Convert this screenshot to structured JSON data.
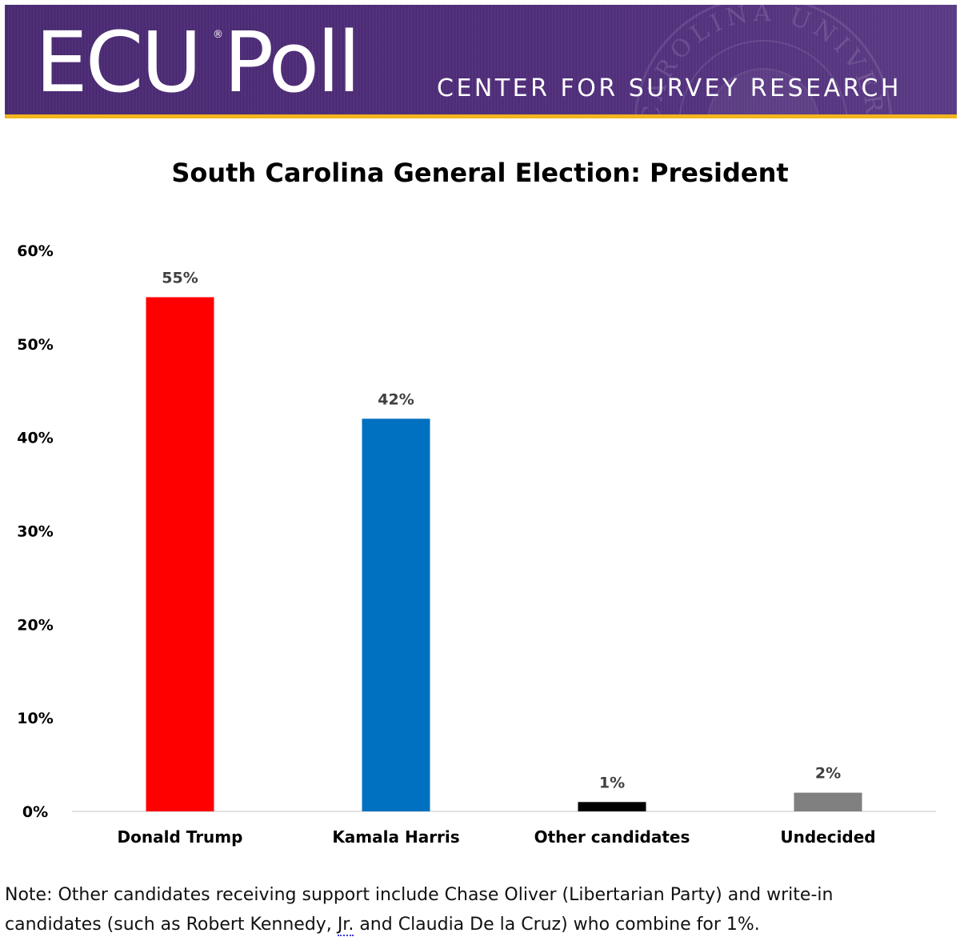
{
  "header": {
    "logo": "ECU Poll",
    "logo_mark": "®",
    "subtitle": "CENTER FOR SURVEY RESEARCH",
    "seal_text": "CAROLINA UNIVERSITY",
    "brand_color": "#4f2d79",
    "accent_color": "#f2b51d"
  },
  "chart_data": {
    "type": "bar",
    "title": "South Carolina General Election: President",
    "categories": [
      "Donald Trump",
      "Kamala Harris",
      "Other candidates",
      "Undecided"
    ],
    "values": [
      55,
      42,
      1,
      2
    ],
    "data_labels": [
      "55%",
      "42%",
      "1%",
      "2%"
    ],
    "colors": [
      "#ff0000",
      "#0070c0",
      "#000000",
      "#808080"
    ],
    "yticks": [
      "0%",
      "10%",
      "20%",
      "30%",
      "40%",
      "50%",
      "60%"
    ],
    "ylim": [
      0,
      60
    ],
    "xlabel": "",
    "ylabel": "",
    "grid": false,
    "legend": "none"
  },
  "note": {
    "before_link": "Note: Other candidates receiving support include Chase Oliver (Libertarian Party) and write-in candidates (such as Robert Kennedy, ",
    "link_text": "Jr.",
    "after_link": " and Claudia De la Cruz) who combine for 1%."
  }
}
